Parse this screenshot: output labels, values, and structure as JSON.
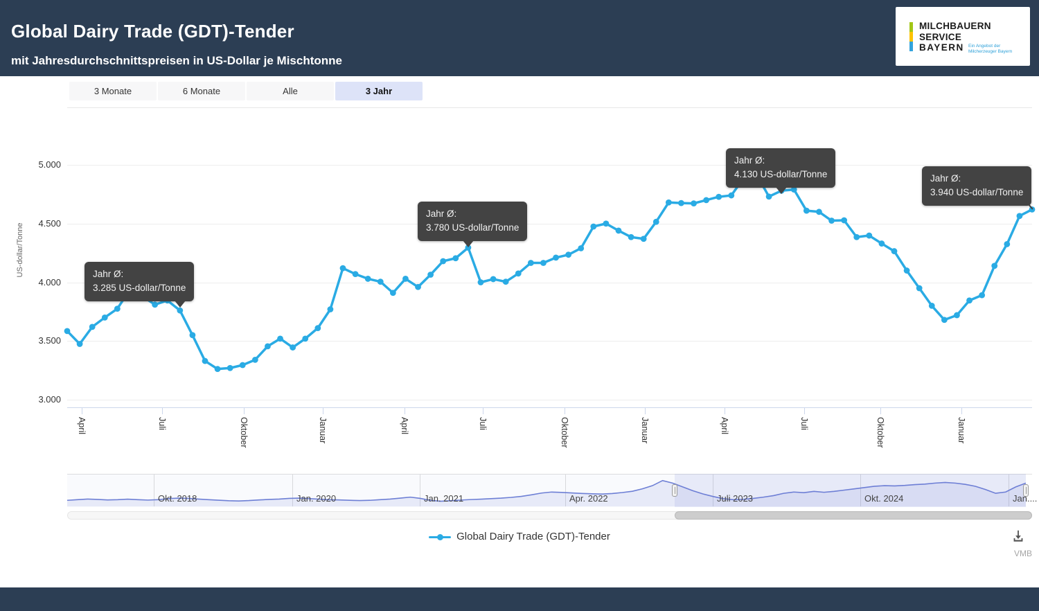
{
  "header": {
    "title": "Global Dairy Trade (GDT)-Tender",
    "subtitle": "mit Jahresdurchschnittspreisen in US-Dollar je Mischtonne",
    "logo": {
      "line1": "MILCHBAUERN",
      "line2": "SERVICE",
      "line3": "BAYERN",
      "tagline1": "Ein Angebot der",
      "tagline2": "Milcherzeuger Bayern",
      "bar_colors": [
        "#a2c617",
        "#fdc300",
        "#33a3dc"
      ]
    }
  },
  "range_selector": {
    "buttons": [
      {
        "label": "3 Monate",
        "selected": false
      },
      {
        "label": "6 Monate",
        "selected": false
      },
      {
        "label": "Alle",
        "selected": false
      },
      {
        "label": "3 Jahr",
        "selected": true
      }
    ]
  },
  "chart_data": {
    "type": "line",
    "series_name": "Global Dairy Trade (GDT)-Tender",
    "ylabel": "US-dollar/Tonne",
    "ylim": [
      3000,
      5000
    ],
    "y_ticks": [
      {
        "label": "3.000",
        "value": 3000
      },
      {
        "label": "3.500",
        "value": 3500
      },
      {
        "label": "4.000",
        "value": 4000
      },
      {
        "label": "4.500",
        "value": 4500
      },
      {
        "label": "5.000",
        "value": 5000
      }
    ],
    "x_ticks": [
      "April",
      "Juli",
      "Oktober",
      "Januar",
      "April",
      "Juli",
      "Oktober",
      "Januar",
      "April",
      "Juli",
      "Oktober",
      "Januar"
    ],
    "grid": true,
    "legend_position": "bottom",
    "line_color": "#2aabe4",
    "values": [
      3585,
      3475,
      3620,
      3700,
      3775,
      3935,
      3880,
      3810,
      3845,
      3760,
      3550,
      3330,
      3262,
      3270,
      3295,
      3340,
      3455,
      3520,
      3445,
      3520,
      3610,
      3770,
      4120,
      4070,
      4030,
      4005,
      3910,
      4030,
      3960,
      4065,
      4180,
      4205,
      4295,
      4000,
      4027,
      4005,
      4075,
      4165,
      4165,
      4210,
      4235,
      4290,
      4475,
      4500,
      4440,
      4385,
      4370,
      4515,
      4680,
      4675,
      4672,
      4700,
      4728,
      4740,
      4890,
      4920,
      4730,
      4780,
      4790,
      4610,
      4600,
      4525,
      4528,
      4385,
      4398,
      4330,
      4265,
      4100,
      3950,
      3800,
      3680,
      3720,
      3845,
      3890,
      4140,
      4325,
      4565,
      4620
    ]
  },
  "annotations": [
    {
      "line1": "Jahr Ø:",
      "line2": "3.285 US-dollar/Tonne",
      "anchor_index": 9
    },
    {
      "line1": "Jahr Ø:",
      "line2": "3.780 US-dollar/Tonne",
      "anchor_index": 32
    },
    {
      "line1": "Jahr Ø:",
      "line2": "4.130 US-dollar/Tonne",
      "anchor_index": 57
    },
    {
      "line1": "Jahr Ø:",
      "line2": "3.940 US-dollar/Tonne",
      "anchor_index": 77
    }
  ],
  "navigator": {
    "labels": [
      "Okt. 2018",
      "Jan. 2020",
      "Jan. 2021",
      "Apr. 2022",
      "Juli 2023",
      "Okt. 2024",
      "Jan...."
    ],
    "selection": {
      "from": 0.634,
      "to": 1.0
    },
    "line_color": "#6e7fd6",
    "values": [
      3250,
      3300,
      3350,
      3320,
      3280,
      3300,
      3340,
      3300,
      3270,
      3300,
      3380,
      3420,
      3400,
      3350,
      3300,
      3260,
      3220,
      3200,
      3230,
      3280,
      3320,
      3350,
      3400,
      3420,
      3380,
      3340,
      3300,
      3280,
      3250,
      3230,
      3250,
      3300,
      3350,
      3420,
      3500,
      3400,
      3250,
      3180,
      3220,
      3270,
      3310,
      3340,
      3380,
      3420,
      3480,
      3560,
      3680,
      3820,
      3900,
      3870,
      3830,
      3790,
      3760,
      3740,
      3780,
      3860,
      3960,
      4150,
      4400,
      4800,
      4600,
      4300,
      4000,
      3750,
      3550,
      3380,
      3300,
      3330,
      3400,
      3500,
      3620,
      3800,
      3900,
      3850,
      3950,
      3880,
      3950,
      4050,
      4150,
      4250,
      4350,
      4400,
      4380,
      4420,
      4480,
      4520,
      4600,
      4650,
      4600,
      4500,
      4350,
      4100,
      3800,
      3900,
      4300,
      4600
    ]
  },
  "legend": {
    "label": "Global Dairy Trade (GDT)-Tender"
  },
  "export": {
    "menu_icon": "download-icon",
    "credit": "VMB"
  },
  "colors": {
    "header_bg": "#2c3e54",
    "accent_line": "#2aabe4",
    "selected_button_bg": "#dde3f8",
    "tooltip_bg": "#434343"
  }
}
